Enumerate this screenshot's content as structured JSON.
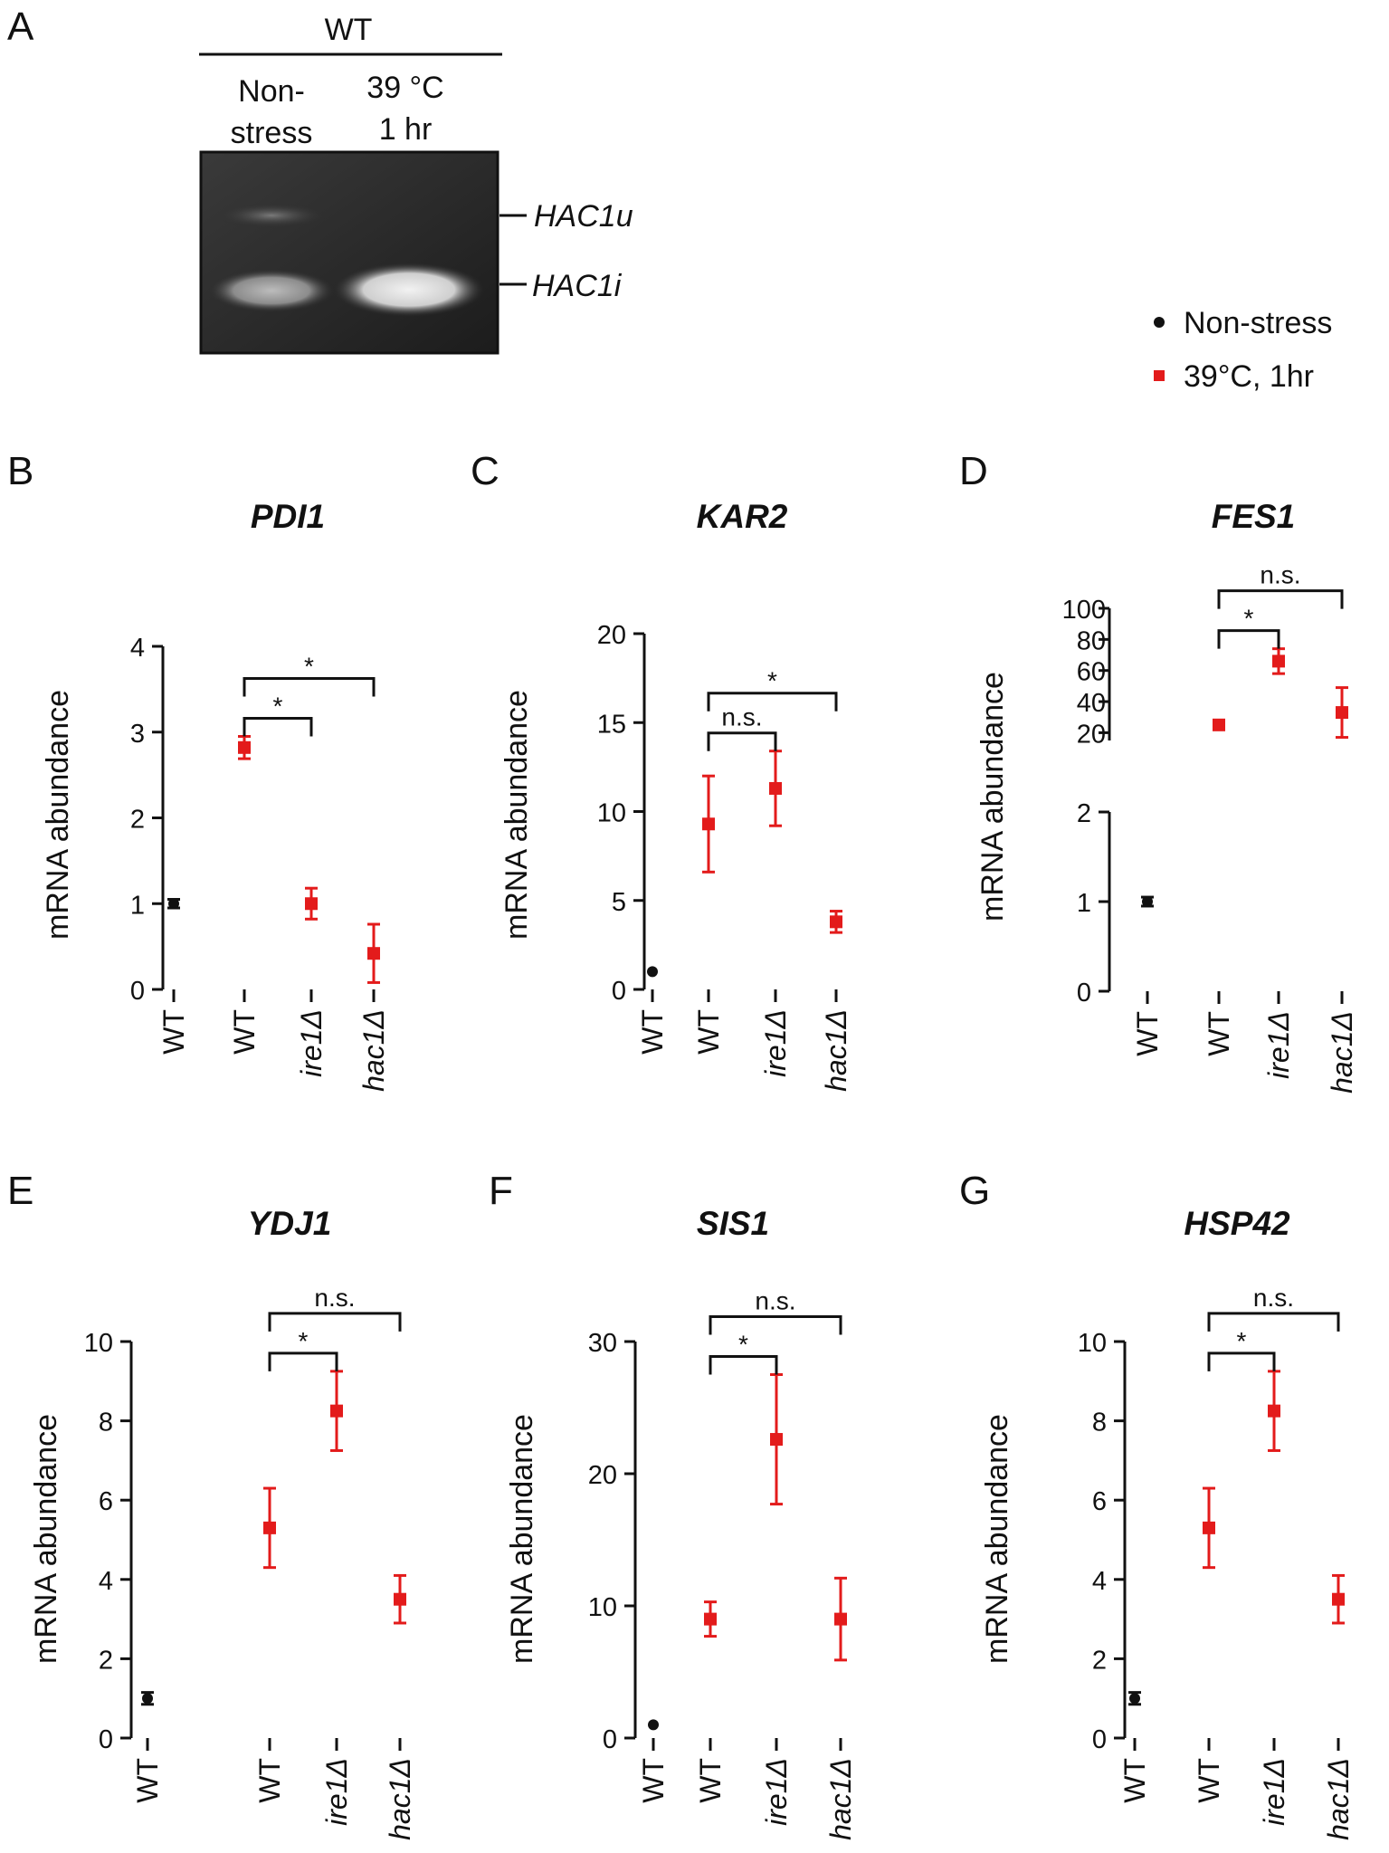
{
  "gel": {
    "panel_label": "A",
    "strain": "WT",
    "lanes": [
      {
        "line1": "Non-",
        "line2": "stress"
      },
      {
        "line1": "39 °C",
        "line2": "1 hr"
      }
    ],
    "bands": [
      "HAC1u",
      "HAC1i"
    ]
  },
  "legend": {
    "items": [
      {
        "label": "Non-stress",
        "color": "#111111",
        "marker": "circle"
      },
      {
        "label": "39°C, 1hr",
        "color": "#e31b1b",
        "marker": "square"
      }
    ]
  },
  "chart_data": [
    {
      "panel": "B",
      "title": "PDI1",
      "type": "scatter",
      "categories": [
        "WT",
        "WT",
        "ire1Δ",
        "hac1Δ"
      ],
      "ylabel": "mRNA abundance",
      "ylim": [
        0,
        4
      ],
      "yticks": [
        0,
        1,
        2,
        3,
        4
      ],
      "points": [
        {
          "cat": 0,
          "value": 1.0,
          "err": 0.05,
          "group": "Non-stress"
        },
        {
          "cat": 1,
          "value": 2.82,
          "err": 0.13,
          "group": "39°C, 1hr"
        },
        {
          "cat": 2,
          "value": 1.0,
          "err": 0.18,
          "group": "39°C, 1hr"
        },
        {
          "cat": 3,
          "value": 0.42,
          "err": 0.34,
          "group": "39°C, 1hr"
        }
      ],
      "brackets": [
        {
          "from": 1,
          "to": 2,
          "label": "*",
          "level": 1
        },
        {
          "from": 1,
          "to": 3,
          "label": "*",
          "level": 2
        }
      ]
    },
    {
      "panel": "C",
      "title": "KAR2",
      "type": "scatter",
      "categories": [
        "WT",
        "WT",
        "ire1Δ",
        "hac1Δ"
      ],
      "ylabel": "mRNA abundance",
      "ylim": [
        0,
        20
      ],
      "yticks": [
        0,
        5,
        10,
        15,
        20
      ],
      "points": [
        {
          "cat": 0,
          "value": 1.0,
          "err": 0,
          "group": "Non-stress"
        },
        {
          "cat": 1,
          "value": 9.3,
          "err": 2.7,
          "group": "39°C, 1hr"
        },
        {
          "cat": 2,
          "value": 11.3,
          "err": 2.1,
          "group": "39°C, 1hr"
        },
        {
          "cat": 3,
          "value": 3.8,
          "err": 0.6,
          "group": "39°C, 1hr"
        }
      ],
      "brackets": [
        {
          "from": 1,
          "to": 2,
          "label": "n.s.",
          "level": 1
        },
        {
          "from": 1,
          "to": 3,
          "label": "*",
          "level": 2
        }
      ]
    },
    {
      "panel": "D",
      "title": "FES1",
      "type": "scatter",
      "categories": [
        "WT",
        "WT",
        "ire1Δ",
        "hac1Δ"
      ],
      "ylabel": "mRNA abundance",
      "broken_axis": true,
      "lower_ylim": [
        0,
        2
      ],
      "lower_yticks": [
        0,
        1,
        2
      ],
      "upper_ylim": [
        15,
        100
      ],
      "upper_yticks": [
        20,
        40,
        60,
        80,
        100
      ],
      "points": [
        {
          "cat": 0,
          "value": 1.0,
          "err": 0.05,
          "group": "Non-stress"
        },
        {
          "cat": 1,
          "value": 25,
          "err": 3,
          "group": "39°C, 1hr"
        },
        {
          "cat": 2,
          "value": 66,
          "err": 8,
          "group": "39°C, 1hr"
        },
        {
          "cat": 3,
          "value": 33,
          "err": 16,
          "group": "39°C, 1hr"
        }
      ],
      "brackets": [
        {
          "from": 1,
          "to": 2,
          "label": "*",
          "level": 1
        },
        {
          "from": 1,
          "to": 3,
          "label": "n.s.",
          "level": 2
        }
      ]
    },
    {
      "panel": "E",
      "title": "YDJ1",
      "type": "scatter",
      "categories": [
        "WT",
        "WT",
        "ire1Δ",
        "hac1Δ"
      ],
      "ylabel": "mRNA abundance",
      "ylim": [
        0,
        10
      ],
      "yticks": [
        0,
        2,
        4,
        6,
        8,
        10
      ],
      "points": [
        {
          "cat": 0,
          "value": 1.0,
          "err": 0.15,
          "group": "Non-stress"
        },
        {
          "cat": 1,
          "value": 5.3,
          "err": 1.0,
          "group": "39°C, 1hr"
        },
        {
          "cat": 2,
          "value": 8.25,
          "err": 1.0,
          "group": "39°C, 1hr"
        },
        {
          "cat": 3,
          "value": 3.5,
          "err": 0.6,
          "group": "39°C, 1hr"
        }
      ],
      "brackets": [
        {
          "from": 1,
          "to": 2,
          "label": "*",
          "level": 1
        },
        {
          "from": 1,
          "to": 3,
          "label": "n.s.",
          "level": 2
        }
      ]
    },
    {
      "panel": "F",
      "title": "SIS1",
      "type": "scatter",
      "categories": [
        "WT",
        "WT",
        "ire1Δ",
        "hac1Δ"
      ],
      "ylabel": "mRNA abundance",
      "ylim": [
        0,
        30
      ],
      "yticks": [
        0,
        10,
        20,
        30
      ],
      "points": [
        {
          "cat": 0,
          "value": 1.0,
          "err": 0,
          "group": "Non-stress"
        },
        {
          "cat": 1,
          "value": 9.0,
          "err": 1.3,
          "group": "39°C, 1hr"
        },
        {
          "cat": 2,
          "value": 22.6,
          "err": 4.9,
          "group": "39°C, 1hr"
        },
        {
          "cat": 3,
          "value": 9.0,
          "err": 3.1,
          "group": "39°C, 1hr"
        }
      ],
      "brackets": [
        {
          "from": 1,
          "to": 2,
          "label": "*",
          "level": 1
        },
        {
          "from": 1,
          "to": 3,
          "label": "n.s.",
          "level": 2
        }
      ]
    },
    {
      "panel": "G",
      "title": "HSP42",
      "type": "scatter",
      "categories": [
        "WT",
        "WT",
        "ire1Δ",
        "hac1Δ"
      ],
      "ylabel": "mRNA abundance",
      "ylim": [
        0,
        10
      ],
      "yticks": [
        0,
        2,
        4,
        6,
        8,
        10
      ],
      "points": [
        {
          "cat": 0,
          "value": 1.0,
          "err": 0.15,
          "group": "Non-stress"
        },
        {
          "cat": 1,
          "value": 5.3,
          "err": 1.0,
          "group": "39°C, 1hr"
        },
        {
          "cat": 2,
          "value": 8.25,
          "err": 1.0,
          "group": "39°C, 1hr"
        },
        {
          "cat": 3,
          "value": 3.5,
          "err": 0.6,
          "group": "39°C, 1hr"
        }
      ],
      "brackets": [
        {
          "from": 1,
          "to": 2,
          "label": "*",
          "level": 1
        },
        {
          "from": 1,
          "to": 3,
          "label": "n.s.",
          "level": 2
        }
      ]
    }
  ]
}
